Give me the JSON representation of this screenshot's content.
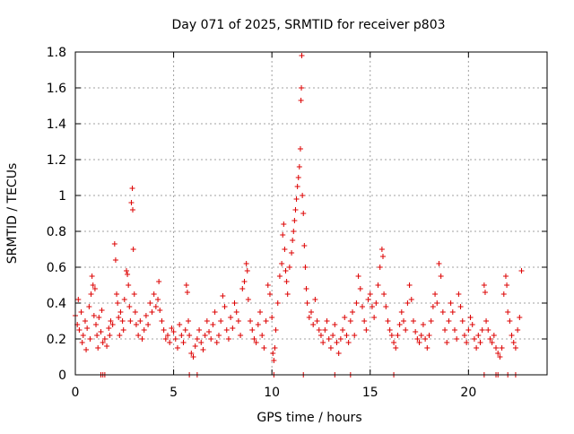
{
  "chart_data": {
    "type": "scatter",
    "title": "Day 071 of 2025, SRMTID for receiver p803",
    "xlabel": "GPS time / hours",
    "ylabel": "SRMTID / TECUs",
    "xlim": [
      0,
      24
    ],
    "ylim": [
      0,
      1.8
    ],
    "xticks": [
      0,
      5,
      10,
      15,
      20
    ],
    "xtick_labels": [
      "0",
      "5",
      "10",
      "15",
      "20"
    ],
    "yticks": [
      0,
      0.2,
      0.4,
      0.6,
      0.8,
      1.0,
      1.2,
      1.4,
      1.6,
      1.8
    ],
    "ytick_labels": [
      "0",
      "0.2",
      "0.4",
      "0.6",
      "0.8",
      "1",
      "1.2",
      "1.4",
      "1.6",
      "1.8"
    ],
    "grid": true,
    "marker": "+",
    "color": "#dd0000",
    "series": [
      {
        "name": "SRMTID",
        "points": [
          [
            0.0,
            0.33
          ],
          [
            0.1,
            0.28
          ],
          [
            0.15,
            0.42
          ],
          [
            0.2,
            0.25
          ],
          [
            0.3,
            0.35
          ],
          [
            0.35,
            0.18
          ],
          [
            0.4,
            0.22
          ],
          [
            0.5,
            0.3
          ],
          [
            0.55,
            0.14
          ],
          [
            0.6,
            0.26
          ],
          [
            0.7,
            0.38
          ],
          [
            0.75,
            0.2
          ],
          [
            0.8,
            0.45
          ],
          [
            0.85,
            0.55
          ],
          [
            0.9,
            0.5
          ],
          [
            0.95,
            0.33
          ],
          [
            1.0,
            0.48
          ],
          [
            1.05,
            0.28
          ],
          [
            1.1,
            0.22
          ],
          [
            1.15,
            0.15
          ],
          [
            1.2,
            0.32
          ],
          [
            1.3,
            0.24
          ],
          [
            1.35,
            0.36
          ],
          [
            1.4,
            0.18
          ],
          [
            1.5,
            0.2
          ],
          [
            1.6,
            0.16
          ],
          [
            1.7,
            0.26
          ],
          [
            1.75,
            0.22
          ],
          [
            1.8,
            0.3
          ],
          [
            1.9,
            0.28
          ],
          [
            2.0,
            0.73
          ],
          [
            2.05,
            0.64
          ],
          [
            2.1,
            0.45
          ],
          [
            2.15,
            0.4
          ],
          [
            2.2,
            0.32
          ],
          [
            2.25,
            0.22
          ],
          [
            2.3,
            0.35
          ],
          [
            2.4,
            0.3
          ],
          [
            2.45,
            0.25
          ],
          [
            2.5,
            0.42
          ],
          [
            2.6,
            0.58
          ],
          [
            2.65,
            0.56
          ],
          [
            2.7,
            0.5
          ],
          [
            2.75,
            0.38
          ],
          [
            2.8,
            0.3
          ],
          [
            2.85,
            0.96
          ],
          [
            2.9,
            1.04
          ],
          [
            2.92,
            0.92
          ],
          [
            2.95,
            0.7
          ],
          [
            3.0,
            0.45
          ],
          [
            3.05,
            0.35
          ],
          [
            3.1,
            0.28
          ],
          [
            3.2,
            0.22
          ],
          [
            3.3,
            0.3
          ],
          [
            3.4,
            0.2
          ],
          [
            3.5,
            0.25
          ],
          [
            3.6,
            0.33
          ],
          [
            3.7,
            0.28
          ],
          [
            3.8,
            0.4
          ],
          [
            3.9,
            0.35
          ],
          [
            4.0,
            0.45
          ],
          [
            4.1,
            0.38
          ],
          [
            4.2,
            0.42
          ],
          [
            4.25,
            0.52
          ],
          [
            4.3,
            0.36
          ],
          [
            4.4,
            0.3
          ],
          [
            4.5,
            0.25
          ],
          [
            4.6,
            0.2
          ],
          [
            4.7,
            0.22
          ],
          [
            4.8,
            0.18
          ],
          [
            4.9,
            0.26
          ],
          [
            5.0,
            0.24
          ],
          [
            5.1,
            0.2
          ],
          [
            5.2,
            0.15
          ],
          [
            5.3,
            0.28
          ],
          [
            5.4,
            0.22
          ],
          [
            5.5,
            0.18
          ],
          [
            5.6,
            0.25
          ],
          [
            5.65,
            0.5
          ],
          [
            5.7,
            0.46
          ],
          [
            5.75,
            0.3
          ],
          [
            5.8,
            0.22
          ],
          [
            5.9,
            0.12
          ],
          [
            6.0,
            0.1
          ],
          [
            6.1,
            0.16
          ],
          [
            6.2,
            0.2
          ],
          [
            6.3,
            0.25
          ],
          [
            6.4,
            0.18
          ],
          [
            6.5,
            0.14
          ],
          [
            6.6,
            0.22
          ],
          [
            6.7,
            0.3
          ],
          [
            6.8,
            0.24
          ],
          [
            6.9,
            0.2
          ],
          [
            7.0,
            0.28
          ],
          [
            7.1,
            0.35
          ],
          [
            7.2,
            0.18
          ],
          [
            7.3,
            0.22
          ],
          [
            7.4,
            0.3
          ],
          [
            7.5,
            0.44
          ],
          [
            7.6,
            0.38
          ],
          [
            7.7,
            0.25
          ],
          [
            7.8,
            0.2
          ],
          [
            7.9,
            0.32
          ],
          [
            8.0,
            0.26
          ],
          [
            8.1,
            0.4
          ],
          [
            8.2,
            0.35
          ],
          [
            8.3,
            0.3
          ],
          [
            8.4,
            0.22
          ],
          [
            8.5,
            0.48
          ],
          [
            8.6,
            0.52
          ],
          [
            8.7,
            0.62
          ],
          [
            8.75,
            0.58
          ],
          [
            8.8,
            0.42
          ],
          [
            8.9,
            0.3
          ],
          [
            9.0,
            0.25
          ],
          [
            9.1,
            0.2
          ],
          [
            9.2,
            0.18
          ],
          [
            9.3,
            0.28
          ],
          [
            9.4,
            0.35
          ],
          [
            9.5,
            0.22
          ],
          [
            9.6,
            0.15
          ],
          [
            9.7,
            0.3
          ],
          [
            9.8,
            0.5
          ],
          [
            9.9,
            0.45
          ],
          [
            10.0,
            0.32
          ],
          [
            10.05,
            0.12
          ],
          [
            10.1,
            0.08
          ],
          [
            10.15,
            0.15
          ],
          [
            10.2,
            0.25
          ],
          [
            10.3,
            0.4
          ],
          [
            10.4,
            0.55
          ],
          [
            10.5,
            0.62
          ],
          [
            10.55,
            0.78
          ],
          [
            10.6,
            0.84
          ],
          [
            10.65,
            0.7
          ],
          [
            10.7,
            0.58
          ],
          [
            10.75,
            0.52
          ],
          [
            10.8,
            0.45
          ],
          [
            10.9,
            0.6
          ],
          [
            11.0,
            0.68
          ],
          [
            11.05,
            0.75
          ],
          [
            11.1,
            0.8
          ],
          [
            11.15,
            0.86
          ],
          [
            11.2,
            0.92
          ],
          [
            11.25,
            0.98
          ],
          [
            11.3,
            1.05
          ],
          [
            11.35,
            1.1
          ],
          [
            11.4,
            1.16
          ],
          [
            11.45,
            1.26
          ],
          [
            11.48,
            1.53
          ],
          [
            11.5,
            1.6
          ],
          [
            11.52,
            1.78
          ],
          [
            11.55,
            1.0
          ],
          [
            11.6,
            0.9
          ],
          [
            11.65,
            0.72
          ],
          [
            11.7,
            0.6
          ],
          [
            11.75,
            0.48
          ],
          [
            11.8,
            0.4
          ],
          [
            11.9,
            0.32
          ],
          [
            12.0,
            0.35
          ],
          [
            12.1,
            0.28
          ],
          [
            12.2,
            0.42
          ],
          [
            12.3,
            0.3
          ],
          [
            12.4,
            0.25
          ],
          [
            12.5,
            0.22
          ],
          [
            12.6,
            0.18
          ],
          [
            12.7,
            0.25
          ],
          [
            12.8,
            0.3
          ],
          [
            12.9,
            0.2
          ],
          [
            13.0,
            0.15
          ],
          [
            13.1,
            0.22
          ],
          [
            13.2,
            0.28
          ],
          [
            13.3,
            0.18
          ],
          [
            13.4,
            0.12
          ],
          [
            13.5,
            0.2
          ],
          [
            13.6,
            0.25
          ],
          [
            13.7,
            0.32
          ],
          [
            13.8,
            0.22
          ],
          [
            13.9,
            0.18
          ],
          [
            14.0,
            0.3
          ],
          [
            14.1,
            0.35
          ],
          [
            14.2,
            0.22
          ],
          [
            14.3,
            0.4
          ],
          [
            14.4,
            0.55
          ],
          [
            14.5,
            0.48
          ],
          [
            14.6,
            0.38
          ],
          [
            14.7,
            0.3
          ],
          [
            14.8,
            0.25
          ],
          [
            14.9,
            0.42
          ],
          [
            15.0,
            0.45
          ],
          [
            15.1,
            0.38
          ],
          [
            15.2,
            0.32
          ],
          [
            15.3,
            0.4
          ],
          [
            15.4,
            0.5
          ],
          [
            15.5,
            0.6
          ],
          [
            15.6,
            0.7
          ],
          [
            15.65,
            0.66
          ],
          [
            15.7,
            0.45
          ],
          [
            15.8,
            0.38
          ],
          [
            15.9,
            0.3
          ],
          [
            16.0,
            0.25
          ],
          [
            16.1,
            0.22
          ],
          [
            16.2,
            0.18
          ],
          [
            16.3,
            0.15
          ],
          [
            16.4,
            0.22
          ],
          [
            16.5,
            0.28
          ],
          [
            16.6,
            0.35
          ],
          [
            16.7,
            0.3
          ],
          [
            16.8,
            0.25
          ],
          [
            16.9,
            0.4
          ],
          [
            17.0,
            0.5
          ],
          [
            17.1,
            0.42
          ],
          [
            17.2,
            0.3
          ],
          [
            17.3,
            0.24
          ],
          [
            17.4,
            0.2
          ],
          [
            17.5,
            0.18
          ],
          [
            17.6,
            0.22
          ],
          [
            17.7,
            0.28
          ],
          [
            17.8,
            0.2
          ],
          [
            17.9,
            0.15
          ],
          [
            18.0,
            0.22
          ],
          [
            18.1,
            0.3
          ],
          [
            18.2,
            0.38
          ],
          [
            18.3,
            0.45
          ],
          [
            18.4,
            0.4
          ],
          [
            18.5,
            0.62
          ],
          [
            18.6,
            0.55
          ],
          [
            18.7,
            0.35
          ],
          [
            18.8,
            0.25
          ],
          [
            18.9,
            0.18
          ],
          [
            19.0,
            0.3
          ],
          [
            19.1,
            0.4
          ],
          [
            19.2,
            0.35
          ],
          [
            19.3,
            0.25
          ],
          [
            19.4,
            0.2
          ],
          [
            19.5,
            0.45
          ],
          [
            19.6,
            0.38
          ],
          [
            19.7,
            0.3
          ],
          [
            19.8,
            0.22
          ],
          [
            19.9,
            0.18
          ],
          [
            20.0,
            0.25
          ],
          [
            20.1,
            0.32
          ],
          [
            20.2,
            0.28
          ],
          [
            20.3,
            0.2
          ],
          [
            20.4,
            0.15
          ],
          [
            20.5,
            0.22
          ],
          [
            20.6,
            0.18
          ],
          [
            20.7,
            0.25
          ],
          [
            20.8,
            0.5
          ],
          [
            20.85,
            0.46
          ],
          [
            20.9,
            0.3
          ],
          [
            21.0,
            0.25
          ],
          [
            21.1,
            0.2
          ],
          [
            21.2,
            0.18
          ],
          [
            21.3,
            0.22
          ],
          [
            21.4,
            0.15
          ],
          [
            21.5,
            0.12
          ],
          [
            21.6,
            0.1
          ],
          [
            21.7,
            0.15
          ],
          [
            21.8,
            0.45
          ],
          [
            21.9,
            0.55
          ],
          [
            21.95,
            0.5
          ],
          [
            22.0,
            0.35
          ],
          [
            22.1,
            0.3
          ],
          [
            22.2,
            0.22
          ],
          [
            22.3,
            0.18
          ],
          [
            22.4,
            0.15
          ],
          [
            22.5,
            0.25
          ],
          [
            22.6,
            0.32
          ],
          [
            22.7,
            0.58
          ]
        ]
      }
    ],
    "zero_markers_x": [
      1.3,
      1.4,
      1.5,
      5.8,
      6.2,
      10.1,
      11.6,
      13.2,
      14.0,
      16.2,
      20.8,
      21.4,
      21.5,
      22.0,
      22.4
    ]
  }
}
